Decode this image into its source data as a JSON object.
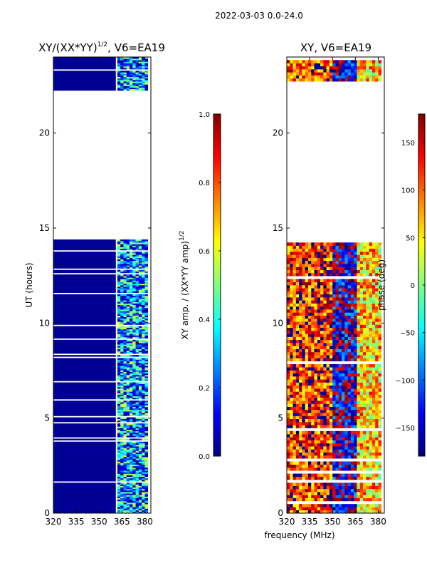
{
  "figure_title": "2022-03-03 0.0-24.0",
  "common_xlabel": "frequency (MHz)",
  "colors": {
    "jet": [
      "#000080",
      "#0000ff",
      "#0080ff",
      "#00ffff",
      "#80ff80",
      "#ffff00",
      "#ff8000",
      "#ff0000",
      "#800000"
    ],
    "data_gap": "#ffffff"
  },
  "chart_data": [
    {
      "type": "heatmap",
      "title_main": "XY/(XX*YY)",
      "title_sup": "1/2",
      "title_tail": ", V6=EA19",
      "ylabel": "UT (hours)",
      "xlabel": "",
      "xlim": [
        320,
        384
      ],
      "ylim": [
        0,
        24
      ],
      "xticks": [
        "320",
        "335",
        "350",
        "365",
        "380"
      ],
      "xtick_values": [
        320,
        335,
        350,
        365,
        380
      ],
      "yticks": [
        "0",
        "5",
        "10",
        "15",
        "20"
      ],
      "ytick_values": [
        0,
        5,
        10,
        15,
        20
      ],
      "colorbar": {
        "label_main": "XY amp. / (XX*YY amp)",
        "label_sup": "1/2",
        "range": [
          0.0,
          1.0
        ],
        "ticks": [
          "0.0",
          "0.2",
          "0.4",
          "0.6",
          "0.8",
          "1.0"
        ],
        "tick_values": [
          0.0,
          0.2,
          0.4,
          0.6,
          0.8,
          1.0
        ]
      },
      "data_coverage_ut": [
        [
          0.0,
          14.4
        ],
        [
          22.2,
          24.0
        ]
      ],
      "value_summary": [
        {
          "freq_range_mhz": [
            320,
            361
          ],
          "typical_value": 0.02
        },
        {
          "freq_range_mhz": [
            361,
            382
          ],
          "typical_value": 0.35
        }
      ]
    },
    {
      "type": "heatmap",
      "title_main": "XY, V6=EA19",
      "title_sup": "",
      "title_tail": "",
      "ylabel": "",
      "xlabel": "frequency (MHz)",
      "xlim": [
        320,
        384
      ],
      "ylim": [
        0,
        24
      ],
      "xticks": [
        "320",
        "335",
        "350",
        "365",
        "380"
      ],
      "xtick_values": [
        320,
        335,
        350,
        365,
        380
      ],
      "yticks": [
        "0",
        "5",
        "10",
        "15",
        "20"
      ],
      "ytick_values": [
        0,
        5,
        10,
        15,
        20
      ],
      "colorbar": {
        "label_main": "phase (deg)",
        "label_sup": "",
        "range": [
          -180,
          180
        ],
        "ticks": [
          "−150",
          "−100",
          "−50",
          "0",
          "50",
          "100",
          "150"
        ],
        "tick_values": [
          -150,
          -100,
          -50,
          0,
          50,
          100,
          150
        ]
      },
      "data_coverage_ut": [
        [
          0.0,
          14.4
        ],
        [
          22.2,
          24.0
        ]
      ],
      "value_summary": [
        {
          "freq_range_mhz": [
            320,
            350
          ],
          "typical_value": 120
        },
        {
          "freq_range_mhz": [
            350,
            365
          ],
          "typical_value": -150
        },
        {
          "freq_range_mhz": [
            365,
            384
          ],
          "typical_value": 60
        }
      ]
    }
  ]
}
